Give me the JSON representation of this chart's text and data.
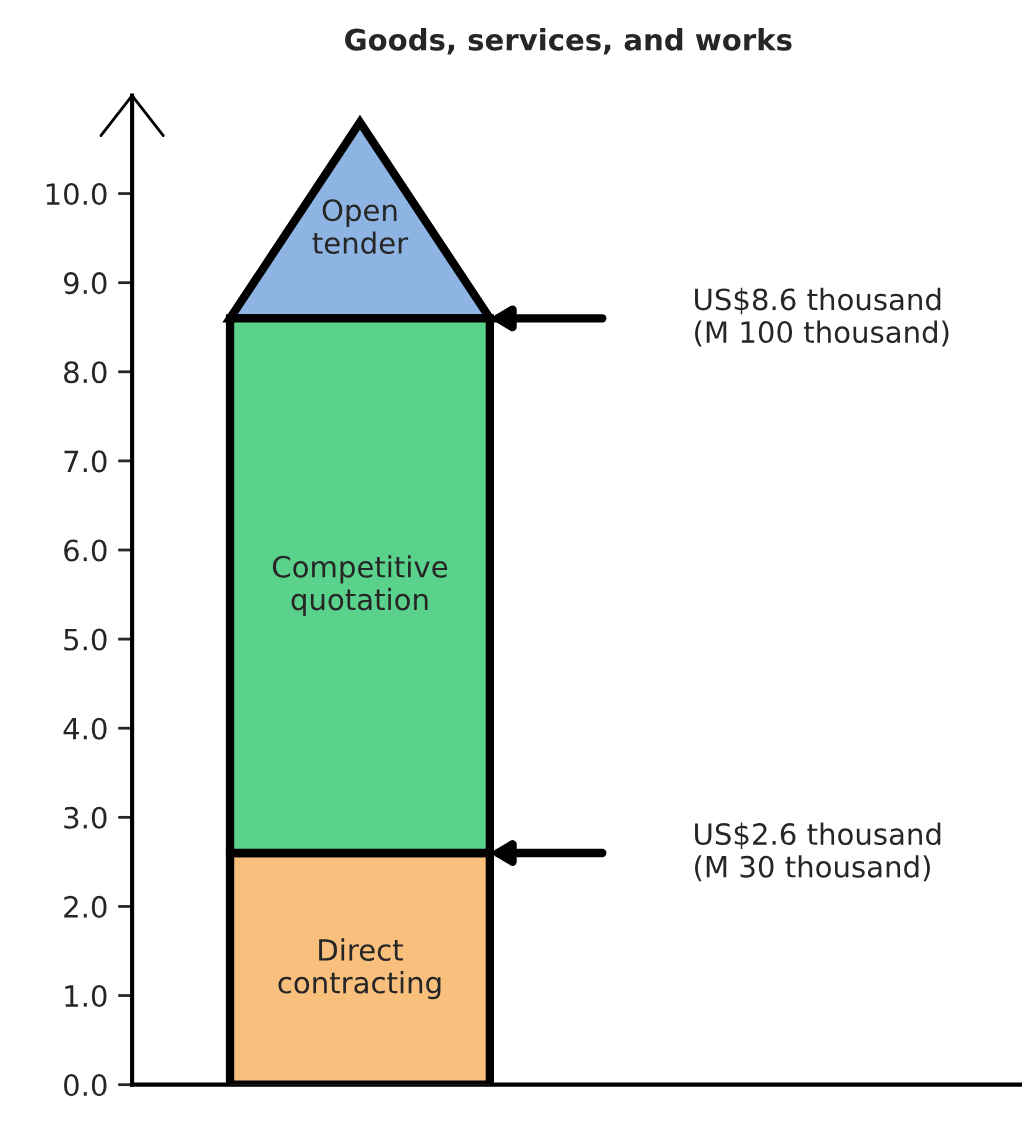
{
  "chart_data": {
    "type": "bar",
    "title": "Goods, services, and works",
    "categories": [
      null
    ],
    "stacked": true,
    "series": [
      {
        "name": "Direct\ncontracting",
        "color": "#f8bf7d",
        "values": [
          2.6
        ]
      },
      {
        "name": "Competitive\nquotation",
        "color": "#5bd28b",
        "values": [
          6.0
        ]
      }
    ],
    "ylim": [
      0,
      11.1
    ],
    "yticks": [
      {
        "value": 0,
        "label": "0.0"
      },
      {
        "value": 1,
        "label": "1.0"
      },
      {
        "value": 2,
        "label": "2.0"
      },
      {
        "value": 3,
        "label": "3.0"
      },
      {
        "value": 4,
        "label": "4.0"
      },
      {
        "value": 5,
        "label": "5.0"
      },
      {
        "value": 6,
        "label": "6.0"
      },
      {
        "value": 7,
        "label": "7.0"
      },
      {
        "value": 8,
        "label": "8.0"
      },
      {
        "value": 9,
        "label": "9.0"
      },
      {
        "value": 10,
        "label": "10.0"
      }
    ],
    "annotations": [
      "Open\ntender",
      "US$8.6 thousand\n(M 100 thousand)",
      "US$2.6 thousand\n(M 30 thousand)"
    ],
    "grid": false,
    "legend": false
  }
}
